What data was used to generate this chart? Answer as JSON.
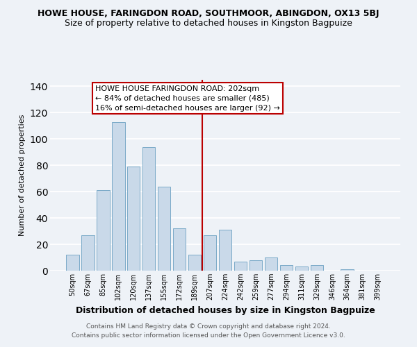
{
  "title": "HOWE HOUSE, FARINGDON ROAD, SOUTHMOOR, ABINGDON, OX13 5BJ",
  "subtitle": "Size of property relative to detached houses in Kingston Bagpuize",
  "xlabel": "Distribution of detached houses by size in Kingston Bagpuize",
  "ylabel": "Number of detached properties",
  "bar_labels": [
    "50sqm",
    "67sqm",
    "85sqm",
    "102sqm",
    "120sqm",
    "137sqm",
    "155sqm",
    "172sqm",
    "189sqm",
    "207sqm",
    "224sqm",
    "242sqm",
    "259sqm",
    "277sqm",
    "294sqm",
    "311sqm",
    "329sqm",
    "346sqm",
    "364sqm",
    "381sqm",
    "399sqm"
  ],
  "bar_values": [
    12,
    27,
    61,
    113,
    79,
    94,
    64,
    32,
    12,
    27,
    31,
    7,
    8,
    10,
    4,
    3,
    4,
    0,
    1,
    0,
    0
  ],
  "bar_color": "#c9d9e9",
  "bar_edge_color": "#7aaac8",
  "ylim": [
    0,
    145
  ],
  "yticks": [
    0,
    20,
    40,
    60,
    80,
    100,
    120,
    140
  ],
  "vline_x": 8.5,
  "vline_color": "#bb0000",
  "annotation_title": "HOWE HOUSE FARINGDON ROAD: 202sqm",
  "annotation_line1": "← 84% of detached houses are smaller (485)",
  "annotation_line2": "16% of semi-detached houses are larger (92) →",
  "annotation_box_color": "#bb0000",
  "footer1": "Contains HM Land Registry data © Crown copyright and database right 2024.",
  "footer2": "Contains public sector information licensed under the Open Government Licence v3.0.",
  "background_color": "#eef2f7",
  "grid_color": "#dde6f0",
  "title_fontsize": 9,
  "subtitle_fontsize": 9,
  "ylabel_fontsize": 8,
  "xlabel_fontsize": 9,
  "tick_fontsize": 7,
  "footer_fontsize": 6.5,
  "annot_fontsize": 8
}
